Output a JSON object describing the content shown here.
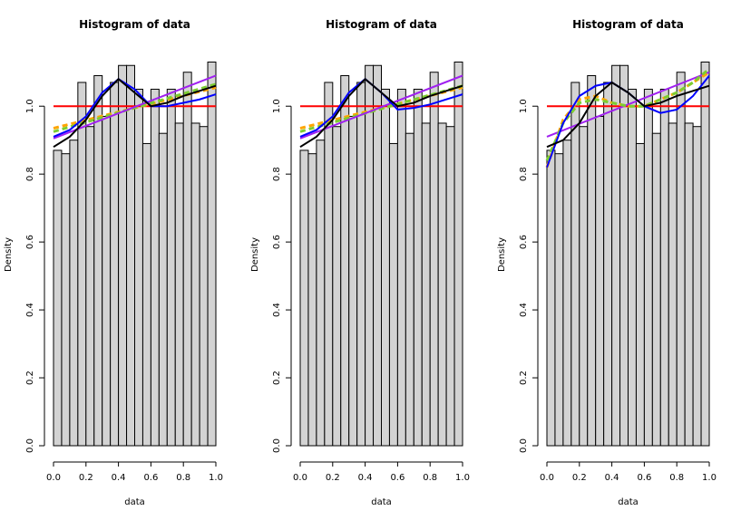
{
  "chart_data": [
    {
      "type": "histogram",
      "title": "Histogram of data",
      "xlabel": "data",
      "ylabel": "Density",
      "color": "#d3d3d3",
      "bins": [
        0,
        0.05,
        0.1,
        0.15,
        0.2,
        0.25,
        0.3,
        0.35,
        0.4,
        0.45,
        0.5,
        0.55,
        0.6,
        0.65,
        0.7,
        0.75,
        0.8,
        0.85,
        0.9,
        0.95,
        1
      ],
      "values": [
        0.87,
        0.86,
        0.9,
        1.07,
        0.94,
        1.09,
        0.97,
        1.07,
        1.12,
        1.12,
        1.05,
        0.89,
        1.05,
        0.92,
        1.05,
        0.95,
        1.1,
        0.95,
        0.94,
        1.13
      ],
      "xlim": [
        0,
        1
      ],
      "ylim": [
        0,
        1.15
      ],
      "xticks": [
        {
          "value": 0,
          "label": "0.0"
        },
        0.2,
        0.4,
        0.6,
        0.8,
        {
          "value": 1,
          "label": "1.0"
        }
      ],
      "yticks": [
        {
          "value": 0,
          "label": "0.0"
        },
        0.2,
        0.4,
        0.6,
        0.8,
        {
          "value": 1,
          "label": "1.0"
        }
      ],
      "lines": [
        {
          "color": "#ff0000",
          "x": [
            0,
            1
          ],
          "values": [
            1,
            1
          ]
        },
        {
          "color": "#ffa500",
          "dash": true,
          "x": [
            0,
            1
          ],
          "values": [
            0.935,
            1.055
          ]
        },
        {
          "color": "#7ccd32",
          "dash": true,
          "x": [
            0,
            1
          ],
          "values": [
            0.925,
            1.065
          ]
        },
        {
          "color": "#a020f0",
          "x": [
            0,
            1
          ],
          "values": [
            0.905,
            1.09
          ]
        },
        {
          "color": "#0000ff",
          "x": [
            0,
            0.1,
            0.2,
            0.3,
            0.4,
            0.5,
            0.6,
            0.7,
            0.8,
            0.9,
            1
          ],
          "values": [
            0.91,
            0.93,
            0.97,
            1.04,
            1.08,
            1.05,
            1.0,
            1.0,
            1.01,
            1.02,
            1.035
          ]
        },
        {
          "color": "#000000",
          "x": [
            0,
            0.1,
            0.2,
            0.3,
            0.4,
            0.5,
            0.6,
            0.7,
            0.8,
            0.9,
            1
          ],
          "values": [
            0.88,
            0.91,
            0.96,
            1.03,
            1.08,
            1.04,
            1.0,
            1.01,
            1.03,
            1.045,
            1.06
          ]
        }
      ]
    },
    {
      "type": "histogram",
      "title": "Histogram of data",
      "xlabel": "data",
      "ylabel": "Density",
      "color": "#d3d3d3",
      "bins": [
        0,
        0.05,
        0.1,
        0.15,
        0.2,
        0.25,
        0.3,
        0.35,
        0.4,
        0.45,
        0.5,
        0.55,
        0.6,
        0.65,
        0.7,
        0.75,
        0.8,
        0.85,
        0.9,
        0.95,
        1
      ],
      "values": [
        0.87,
        0.86,
        0.9,
        1.07,
        0.94,
        1.09,
        0.97,
        1.07,
        1.12,
        1.12,
        1.05,
        0.89,
        1.05,
        0.92,
        1.05,
        0.95,
        1.1,
        0.95,
        0.94,
        1.13
      ],
      "xlim": [
        0,
        1
      ],
      "ylim": [
        0,
        1.15
      ],
      "xticks": [
        {
          "value": 0,
          "label": "0.0"
        },
        0.2,
        0.4,
        0.6,
        0.8,
        {
          "value": 1,
          "label": "1.0"
        }
      ],
      "yticks": [
        {
          "value": 0,
          "label": "0.0"
        },
        0.2,
        0.4,
        0.6,
        0.8,
        {
          "value": 1,
          "label": "1.0"
        }
      ],
      "lines": [
        {
          "color": "#ff0000",
          "x": [
            0,
            1
          ],
          "values": [
            1,
            1
          ]
        },
        {
          "color": "#ffa500",
          "dash": true,
          "x": [
            0,
            1
          ],
          "values": [
            0.935,
            1.055
          ]
        },
        {
          "color": "#7ccd32",
          "dash": true,
          "x": [
            0,
            1
          ],
          "values": [
            0.925,
            1.06
          ]
        },
        {
          "color": "#a020f0",
          "x": [
            0,
            1
          ],
          "values": [
            0.905,
            1.09
          ]
        },
        {
          "color": "#0000ff",
          "x": [
            0,
            0.1,
            0.2,
            0.3,
            0.4,
            0.5,
            0.6,
            0.7,
            0.8,
            0.9,
            1
          ],
          "values": [
            0.91,
            0.93,
            0.97,
            1.04,
            1.08,
            1.04,
            0.99,
            0.995,
            1.005,
            1.02,
            1.035
          ]
        },
        {
          "color": "#000000",
          "x": [
            0,
            0.1,
            0.2,
            0.3,
            0.4,
            0.5,
            0.6,
            0.7,
            0.8,
            0.9,
            1
          ],
          "values": [
            0.88,
            0.91,
            0.96,
            1.03,
            1.08,
            1.04,
            1.0,
            1.01,
            1.03,
            1.045,
            1.06
          ]
        }
      ]
    },
    {
      "type": "histogram",
      "title": "Histogram of data",
      "xlabel": "data",
      "ylabel": "Density",
      "color": "#d3d3d3",
      "bins": [
        0,
        0.05,
        0.1,
        0.15,
        0.2,
        0.25,
        0.3,
        0.35,
        0.4,
        0.45,
        0.5,
        0.55,
        0.6,
        0.65,
        0.7,
        0.75,
        0.8,
        0.85,
        0.9,
        0.95,
        1
      ],
      "values": [
        0.87,
        0.86,
        0.9,
        1.07,
        0.94,
        1.09,
        0.97,
        1.07,
        1.12,
        1.12,
        1.05,
        0.89,
        1.05,
        0.92,
        1.05,
        0.95,
        1.1,
        0.95,
        0.94,
        1.13
      ],
      "xlim": [
        0,
        1
      ],
      "ylim": [
        0,
        1.15
      ],
      "xticks": [
        {
          "value": 0,
          "label": "0.0"
        },
        0.2,
        0.4,
        0.6,
        0.8,
        {
          "value": 1,
          "label": "1.0"
        }
      ],
      "yticks": [
        {
          "value": 0,
          "label": "0.0"
        },
        0.2,
        0.4,
        0.6,
        0.8,
        {
          "value": 1,
          "label": "1.0"
        }
      ],
      "lines": [
        {
          "color": "#ff0000",
          "x": [
            0,
            1
          ],
          "values": [
            1,
            1
          ]
        },
        {
          "color": "#a020f0",
          "x": [
            0,
            1
          ],
          "values": [
            0.91,
            1.1
          ]
        },
        {
          "color": "#ffa500",
          "dash": true,
          "x": [
            0,
            0.1,
            0.2,
            0.3,
            0.4,
            0.5,
            0.6,
            0.7,
            0.8,
            0.9,
            1
          ],
          "values": [
            0.82,
            0.96,
            1.02,
            1.03,
            1.01,
            1.0,
            1.0,
            1.02,
            1.04,
            1.07,
            1.1
          ]
        },
        {
          "color": "#7ccd32",
          "dash": true,
          "x": [
            0,
            0.1,
            0.2,
            0.3,
            0.4,
            0.5,
            0.6,
            0.7,
            0.8,
            0.9,
            1
          ],
          "values": [
            0.84,
            0.95,
            1.01,
            1.02,
            1.01,
            1.0,
            1.0,
            1.02,
            1.04,
            1.07,
            1.11
          ]
        },
        {
          "color": "#0000ff",
          "x": [
            0,
            0.1,
            0.2,
            0.3,
            0.4,
            0.5,
            0.6,
            0.7,
            0.8,
            0.9,
            1
          ],
          "values": [
            0.82,
            0.95,
            1.03,
            1.06,
            1.07,
            1.04,
            1.0,
            0.98,
            0.99,
            1.03,
            1.09
          ]
        },
        {
          "color": "#000000",
          "x": [
            0,
            0.1,
            0.2,
            0.3,
            0.4,
            0.5,
            0.6,
            0.7,
            0.8,
            0.9,
            1
          ],
          "values": [
            0.88,
            0.9,
            0.95,
            1.03,
            1.07,
            1.04,
            1.0,
            1.01,
            1.03,
            1.045,
            1.06
          ]
        }
      ]
    }
  ]
}
